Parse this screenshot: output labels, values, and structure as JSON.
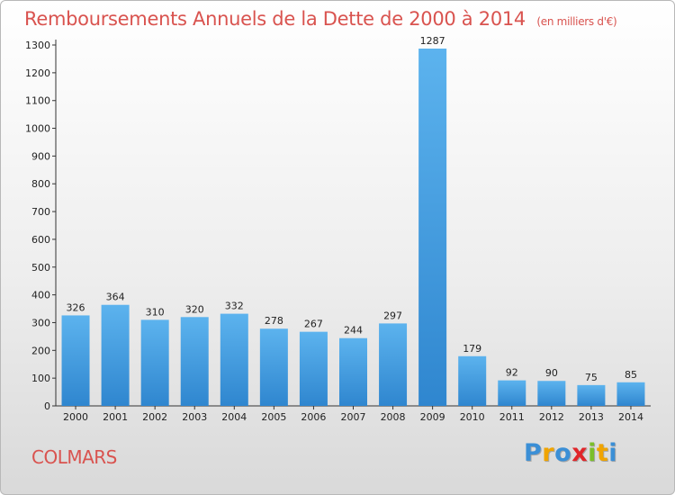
{
  "chart_data": {
    "type": "bar",
    "title": "Remboursements Annuels de la Dette de 2000 à 2014",
    "subtitle": "(en milliers d'€)",
    "categories": [
      "2000",
      "2001",
      "2002",
      "2003",
      "2004",
      "2005",
      "2006",
      "2007",
      "2008",
      "2009",
      "2010",
      "2011",
      "2012",
      "2013",
      "2014"
    ],
    "values": [
      326,
      364,
      310,
      320,
      332,
      278,
      267,
      244,
      297,
      1287,
      179,
      92,
      90,
      75,
      85
    ],
    "ylim": [
      0,
      1300
    ],
    "yticks": [
      0,
      100,
      200,
      300,
      400,
      500,
      600,
      700,
      800,
      900,
      1000,
      1100,
      1200,
      1300
    ],
    "grid": false,
    "bar_color": "#4aa3e6"
  },
  "footer": {
    "place": "COLMARS",
    "brand_letters": [
      "P",
      "r",
      "o",
      "x",
      "i",
      "t",
      "i"
    ],
    "brand_colors": [
      "#3b8fd6",
      "#f0a400",
      "#3b8fd6",
      "#e0262a",
      "#7bbf2a",
      "#f0a400",
      "#3b8fd6"
    ]
  }
}
